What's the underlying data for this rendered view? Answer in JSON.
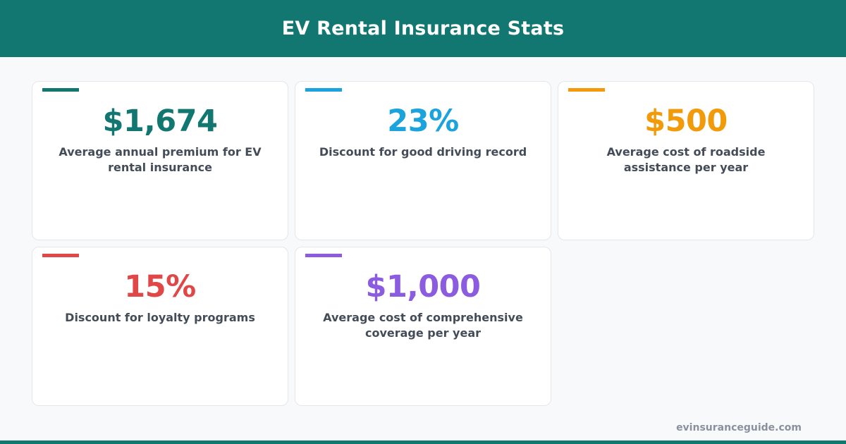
{
  "header": {
    "title": "EV Rental Insurance Stats"
  },
  "cards": [
    {
      "value": "$1,674",
      "label": "Average annual premium for EV rental insurance",
      "color": "#117770"
    },
    {
      "value": "23%",
      "label": "Discount for good driving record",
      "color": "#1aa3dc"
    },
    {
      "value": "$500",
      "label": "Average cost of roadside assistance per year",
      "color": "#f19b0a"
    },
    {
      "value": "15%",
      "label": "Discount for loyalty programs",
      "color": "#e04848"
    },
    {
      "value": "$1,000",
      "label": "Average cost of comprehensive coverage per year",
      "color": "#8b5be0"
    }
  ],
  "footer": {
    "source": "evinsuranceguide.com",
    "accent": "#117770"
  }
}
